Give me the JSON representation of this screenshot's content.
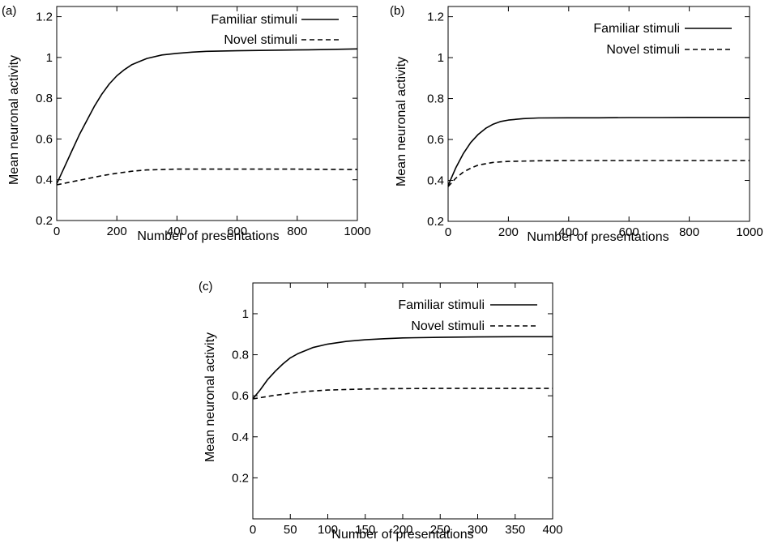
{
  "chart_data": [
    {
      "type": "line",
      "panel_label": "(a)",
      "xlabel": "Number of presentations",
      "ylabel": "Mean neuronal activity",
      "xlim": [
        0,
        1000
      ],
      "ylim": [
        0.2,
        1.25
      ],
      "xticks": [
        0,
        200,
        400,
        600,
        800,
        1000
      ],
      "yticks": [
        0.2,
        0.4,
        0.6,
        0.8,
        1,
        1.2
      ],
      "xtick_labels": [
        "0",
        "200",
        "400",
        "600",
        "800",
        "1000"
      ],
      "ytick_labels": [
        "0.2",
        "0.4",
        "0.6",
        "0.8",
        "1",
        "1.2"
      ],
      "grid": false,
      "legend_position": "top-right",
      "series": [
        {
          "name": "Familiar stimuli",
          "style": "solid",
          "x": [
            0,
            25,
            50,
            75,
            100,
            125,
            150,
            175,
            200,
            225,
            250,
            275,
            300,
            350,
            400,
            450,
            500,
            600,
            700,
            800,
            900,
            1000
          ],
          "y": [
            0.38,
            0.46,
            0.54,
            0.62,
            0.69,
            0.76,
            0.82,
            0.87,
            0.91,
            0.94,
            0.965,
            0.98,
            0.995,
            1.012,
            1.02,
            1.026,
            1.03,
            1.033,
            1.035,
            1.037,
            1.039,
            1.042
          ]
        },
        {
          "name": "Novel   stimuli",
          "style": "dashed",
          "x": [
            0,
            50,
            100,
            150,
            200,
            250,
            300,
            400,
            500,
            600,
            700,
            800,
            900,
            1000
          ],
          "y": [
            0.375,
            0.39,
            0.405,
            0.42,
            0.432,
            0.442,
            0.448,
            0.452,
            0.452,
            0.452,
            0.452,
            0.452,
            0.451,
            0.45
          ]
        }
      ]
    },
    {
      "type": "line",
      "panel_label": "(b)",
      "xlabel": "Number of presentations",
      "ylabel": "Mean neuronal activity",
      "xlim": [
        0,
        1000
      ],
      "ylim": [
        0.2,
        1.25
      ],
      "xticks": [
        0,
        200,
        400,
        600,
        800,
        1000
      ],
      "yticks": [
        0.2,
        0.4,
        0.6,
        0.8,
        1,
        1.2
      ],
      "xtick_labels": [
        "0",
        "200",
        "400",
        "600",
        "800",
        "1000"
      ],
      "ytick_labels": [
        "0.2",
        "0.4",
        "0.6",
        "0.8",
        "1",
        "1.2"
      ],
      "grid": false,
      "legend_position": "top-right",
      "series": [
        {
          "name": "Familiar stimuli",
          "style": "solid",
          "x": [
            0,
            25,
            50,
            75,
            100,
            125,
            150,
            175,
            200,
            250,
            300,
            400,
            500,
            600,
            700,
            800,
            900,
            1000
          ],
          "y": [
            0.375,
            0.46,
            0.53,
            0.585,
            0.625,
            0.655,
            0.675,
            0.688,
            0.695,
            0.702,
            0.705,
            0.706,
            0.706,
            0.707,
            0.707,
            0.708,
            0.708,
            0.708
          ]
        },
        {
          "name": "Novel   stimuli",
          "style": "dashed",
          "x": [
            0,
            25,
            50,
            75,
            100,
            150,
            200,
            300,
            400,
            500,
            600,
            700,
            800,
            900,
            1000
          ],
          "y": [
            0.37,
            0.41,
            0.44,
            0.46,
            0.475,
            0.488,
            0.493,
            0.496,
            0.497,
            0.497,
            0.497,
            0.497,
            0.497,
            0.497,
            0.497
          ]
        }
      ]
    },
    {
      "type": "line",
      "panel_label": "(c)",
      "xlabel": "Number of presentations",
      "ylabel": "Mean neuronal activity",
      "xlim": [
        0,
        400
      ],
      "ylim": [
        0,
        1.15
      ],
      "xticks": [
        0,
        50,
        100,
        150,
        200,
        250,
        300,
        350,
        400
      ],
      "yticks": [
        0.2,
        0.4,
        0.6,
        0.8,
        1
      ],
      "xtick_labels": [
        "0",
        "50",
        "100",
        "150",
        "200",
        "250",
        "300",
        "350",
        "400"
      ],
      "ytick_labels": [
        "0.2",
        "0.4",
        "0.6",
        "0.8",
        "1"
      ],
      "grid": false,
      "legend_position": "top-right",
      "series": [
        {
          "name": "Familiar stimuli",
          "style": "solid",
          "x": [
            0,
            10,
            20,
            30,
            40,
            50,
            60,
            70,
            80,
            100,
            125,
            150,
            175,
            200,
            250,
            300,
            350,
            400
          ],
          "y": [
            0.585,
            0.63,
            0.68,
            0.72,
            0.755,
            0.785,
            0.805,
            0.82,
            0.835,
            0.852,
            0.865,
            0.873,
            0.878,
            0.882,
            0.885,
            0.887,
            0.888,
            0.888
          ]
        },
        {
          "name": "Novel   stimuli",
          "style": "dashed",
          "x": [
            0,
            25,
            50,
            75,
            100,
            150,
            200,
            250,
            300,
            350,
            400
          ],
          "y": [
            0.585,
            0.6,
            0.612,
            0.622,
            0.628,
            0.633,
            0.635,
            0.636,
            0.636,
            0.636,
            0.636
          ]
        }
      ]
    }
  ],
  "colors": {
    "line": "#000000",
    "background": "#ffffff"
  }
}
